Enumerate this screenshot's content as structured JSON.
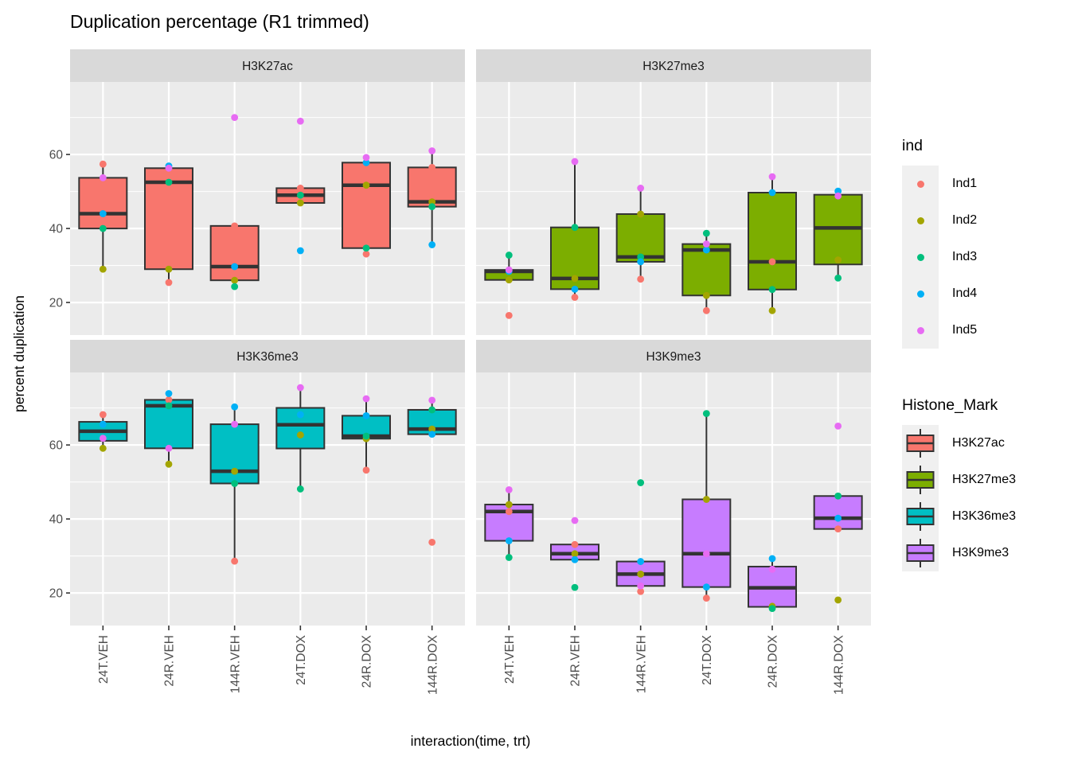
{
  "chart_data": {
    "type": "boxplot",
    "title": "Duplication percentage (R1 trimmed)",
    "xlabel": "interaction(time, trt)",
    "ylabel": "percent duplication",
    "ylim": [
      11.2,
      79.6
    ],
    "yticks": [
      20,
      40,
      60
    ],
    "yticks_minor": [
      30,
      50,
      70
    ],
    "grid": "on",
    "categories": [
      "24T.VEH",
      "24R.VEH",
      "144R.VEH",
      "24T.DOX",
      "24R.DOX",
      "144R.DOX"
    ],
    "individuals": [
      {
        "name": "Ind1",
        "color": "#F8766D"
      },
      {
        "name": "Ind2",
        "color": "#A3A500"
      },
      {
        "name": "Ind3",
        "color": "#00BF7D"
      },
      {
        "name": "Ind4",
        "color": "#00B0F6"
      },
      {
        "name": "Ind5",
        "color": "#E76BF3"
      }
    ],
    "facets": [
      {
        "label": "H3K27ac",
        "fill": "#F8766D",
        "data": {
          "24T.VEH": {
            "Ind1": 57.4,
            "Ind2": 29.0,
            "Ind3": 40.0,
            "Ind4": 44.0,
            "Ind5": 53.7
          },
          "24R.VEH": {
            "Ind1": 25.4,
            "Ind2": 29.0,
            "Ind3": 52.5,
            "Ind4": 56.9,
            "Ind5": 56.3
          },
          "144R.VEH": {
            "Ind1": 40.7,
            "Ind2": 26.0,
            "Ind3": 24.3,
            "Ind4": 29.7,
            "Ind5": 70.0
          },
          "24T.DOX": {
            "Ind1": 50.9,
            "Ind2": 46.9,
            "Ind3": 49.0,
            "Ind4": 34.0,
            "Ind5": 69.0
          },
          "24R.DOX": {
            "Ind1": 33.1,
            "Ind2": 51.7,
            "Ind3": 34.7,
            "Ind4": 57.8,
            "Ind5": 59.2
          },
          "144R.DOX": {
            "Ind1": 56.5,
            "Ind2": 47.2,
            "Ind3": 45.9,
            "Ind4": 35.6,
            "Ind5": 61.0
          }
        }
      },
      {
        "label": "H3K27me3",
        "fill": "#7CAE00",
        "data": {
          "24T.VEH": {
            "Ind1": 16.5,
            "Ind2": 26.1,
            "Ind3": 32.8,
            "Ind4": 28.4,
            "Ind5": 28.8
          },
          "24R.VEH": {
            "Ind1": 21.4,
            "Ind2": 26.5,
            "Ind3": 40.3,
            "Ind4": 23.6,
            "Ind5": 58.1
          },
          "144R.VEH": {
            "Ind1": 26.3,
            "Ind2": 43.9,
            "Ind3": 32.3,
            "Ind4": 31.0,
            "Ind5": 50.9
          },
          "24T.DOX": {
            "Ind1": 17.8,
            "Ind2": 21.9,
            "Ind3": 38.7,
            "Ind4": 34.2,
            "Ind5": 35.8
          },
          "24R.DOX": {
            "Ind1": 31.0,
            "Ind2": 17.8,
            "Ind3": 23.5,
            "Ind4": 49.7,
            "Ind5": 54.0
          },
          "144R.DOX": {
            "Ind2": 31.5,
            "Ind3": 26.6,
            "Ind4": 50.1,
            "Ind5": 48.8
          }
        }
      },
      {
        "label": "H3K36me3",
        "fill": "#00BFC4",
        "data": {
          "24T.VEH": {
            "Ind1": 68.2,
            "Ind2": 59.1,
            "Ind4": 65.6,
            "Ind5": 61.8
          },
          "24R.VEH": {
            "Ind1": 72.2,
            "Ind2": 54.8,
            "Ind3": 70.6,
            "Ind4": 73.9,
            "Ind5": 59.1
          },
          "144R.VEH": {
            "Ind1": 28.6,
            "Ind2": 52.9,
            "Ind3": 49.6,
            "Ind4": 70.3,
            "Ind5": 65.6
          },
          "24T.DOX": {
            "Ind2": 62.7,
            "Ind3": 48.1,
            "Ind4": 68.2,
            "Ind5": 75.5
          },
          "24R.DOX": {
            "Ind1": 53.2,
            "Ind2": 61.7,
            "Ind3": 62.4,
            "Ind4": 67.9,
            "Ind5": 72.5
          },
          "144R.DOX": {
            "Ind1": 33.7,
            "Ind2": 64.3,
            "Ind3": 69.5,
            "Ind4": 62.9,
            "Ind5": 72.1
          }
        }
      },
      {
        "label": "H3K9me3",
        "fill": "#C77CFF",
        "data": {
          "24T.VEH": {
            "Ind1": 42.0,
            "Ind2": 43.9,
            "Ind3": 29.6,
            "Ind4": 34.1,
            "Ind5": 47.9
          },
          "24R.VEH": {
            "Ind1": 33.1,
            "Ind2": 30.6,
            "Ind3": 21.5,
            "Ind4": 29.0,
            "Ind5": 39.6
          },
          "144R.VEH": {
            "Ind1": 20.4,
            "Ind2": 25.1,
            "Ind3": 49.8,
            "Ind4": 28.5,
            "Ind5": 21.9
          },
          "24T.DOX": {
            "Ind1": 18.6,
            "Ind2": 45.3,
            "Ind3": 68.5,
            "Ind4": 21.6,
            "Ind5": 30.6
          },
          "24R.DOX": {
            "Ind2": 16.4,
            "Ind3": 15.8,
            "Ind4": 29.3,
            "Ind5": 26.4
          },
          "144R.DOX": {
            "Ind1": 37.3,
            "Ind2": 18.1,
            "Ind3": 46.2,
            "Ind4": 40.2,
            "Ind5": 65.1
          }
        }
      }
    ],
    "legend_ind": {
      "title": "ind"
    },
    "legend_mark": {
      "title": "Histone_Mark"
    },
    "colors": {
      "panel_bg": "#EBEBEB",
      "strip_bg": "#D9D9D9",
      "grid": "#FFFFFF",
      "box_line": "#333333",
      "tick": "#333333",
      "axis_text": "#4D4D4D",
      "strip_text": "#1A1A1A",
      "legend_key_bg": "#F0F0F0"
    }
  }
}
